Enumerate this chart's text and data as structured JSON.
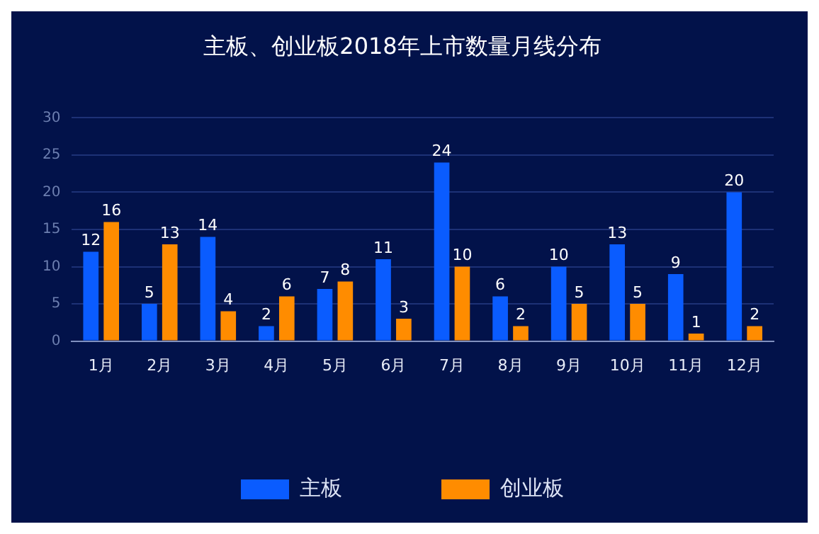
{
  "chart_data": {
    "type": "bar",
    "title": "主板、创业板2018年上市数量月线分布",
    "categories": [
      "1月",
      "2月",
      "3月",
      "4月",
      "5月",
      "6月",
      "7月",
      "8月",
      "9月",
      "10月",
      "11月",
      "12月"
    ],
    "series": [
      {
        "name": "主板",
        "color": "#0a5cff",
        "values": [
          12,
          5,
          14,
          2,
          7,
          11,
          24,
          6,
          10,
          13,
          9,
          20
        ]
      },
      {
        "name": "创业板",
        "color": "#ff8c00",
        "values": [
          16,
          13,
          4,
          6,
          8,
          3,
          10,
          2,
          5,
          5,
          1,
          2
        ]
      }
    ],
    "ylim": [
      0,
      30
    ],
    "yticks": [
      0,
      5,
      10,
      15,
      20,
      25,
      30
    ],
    "grid": "y",
    "legend": "bottom",
    "data_labels": true
  }
}
